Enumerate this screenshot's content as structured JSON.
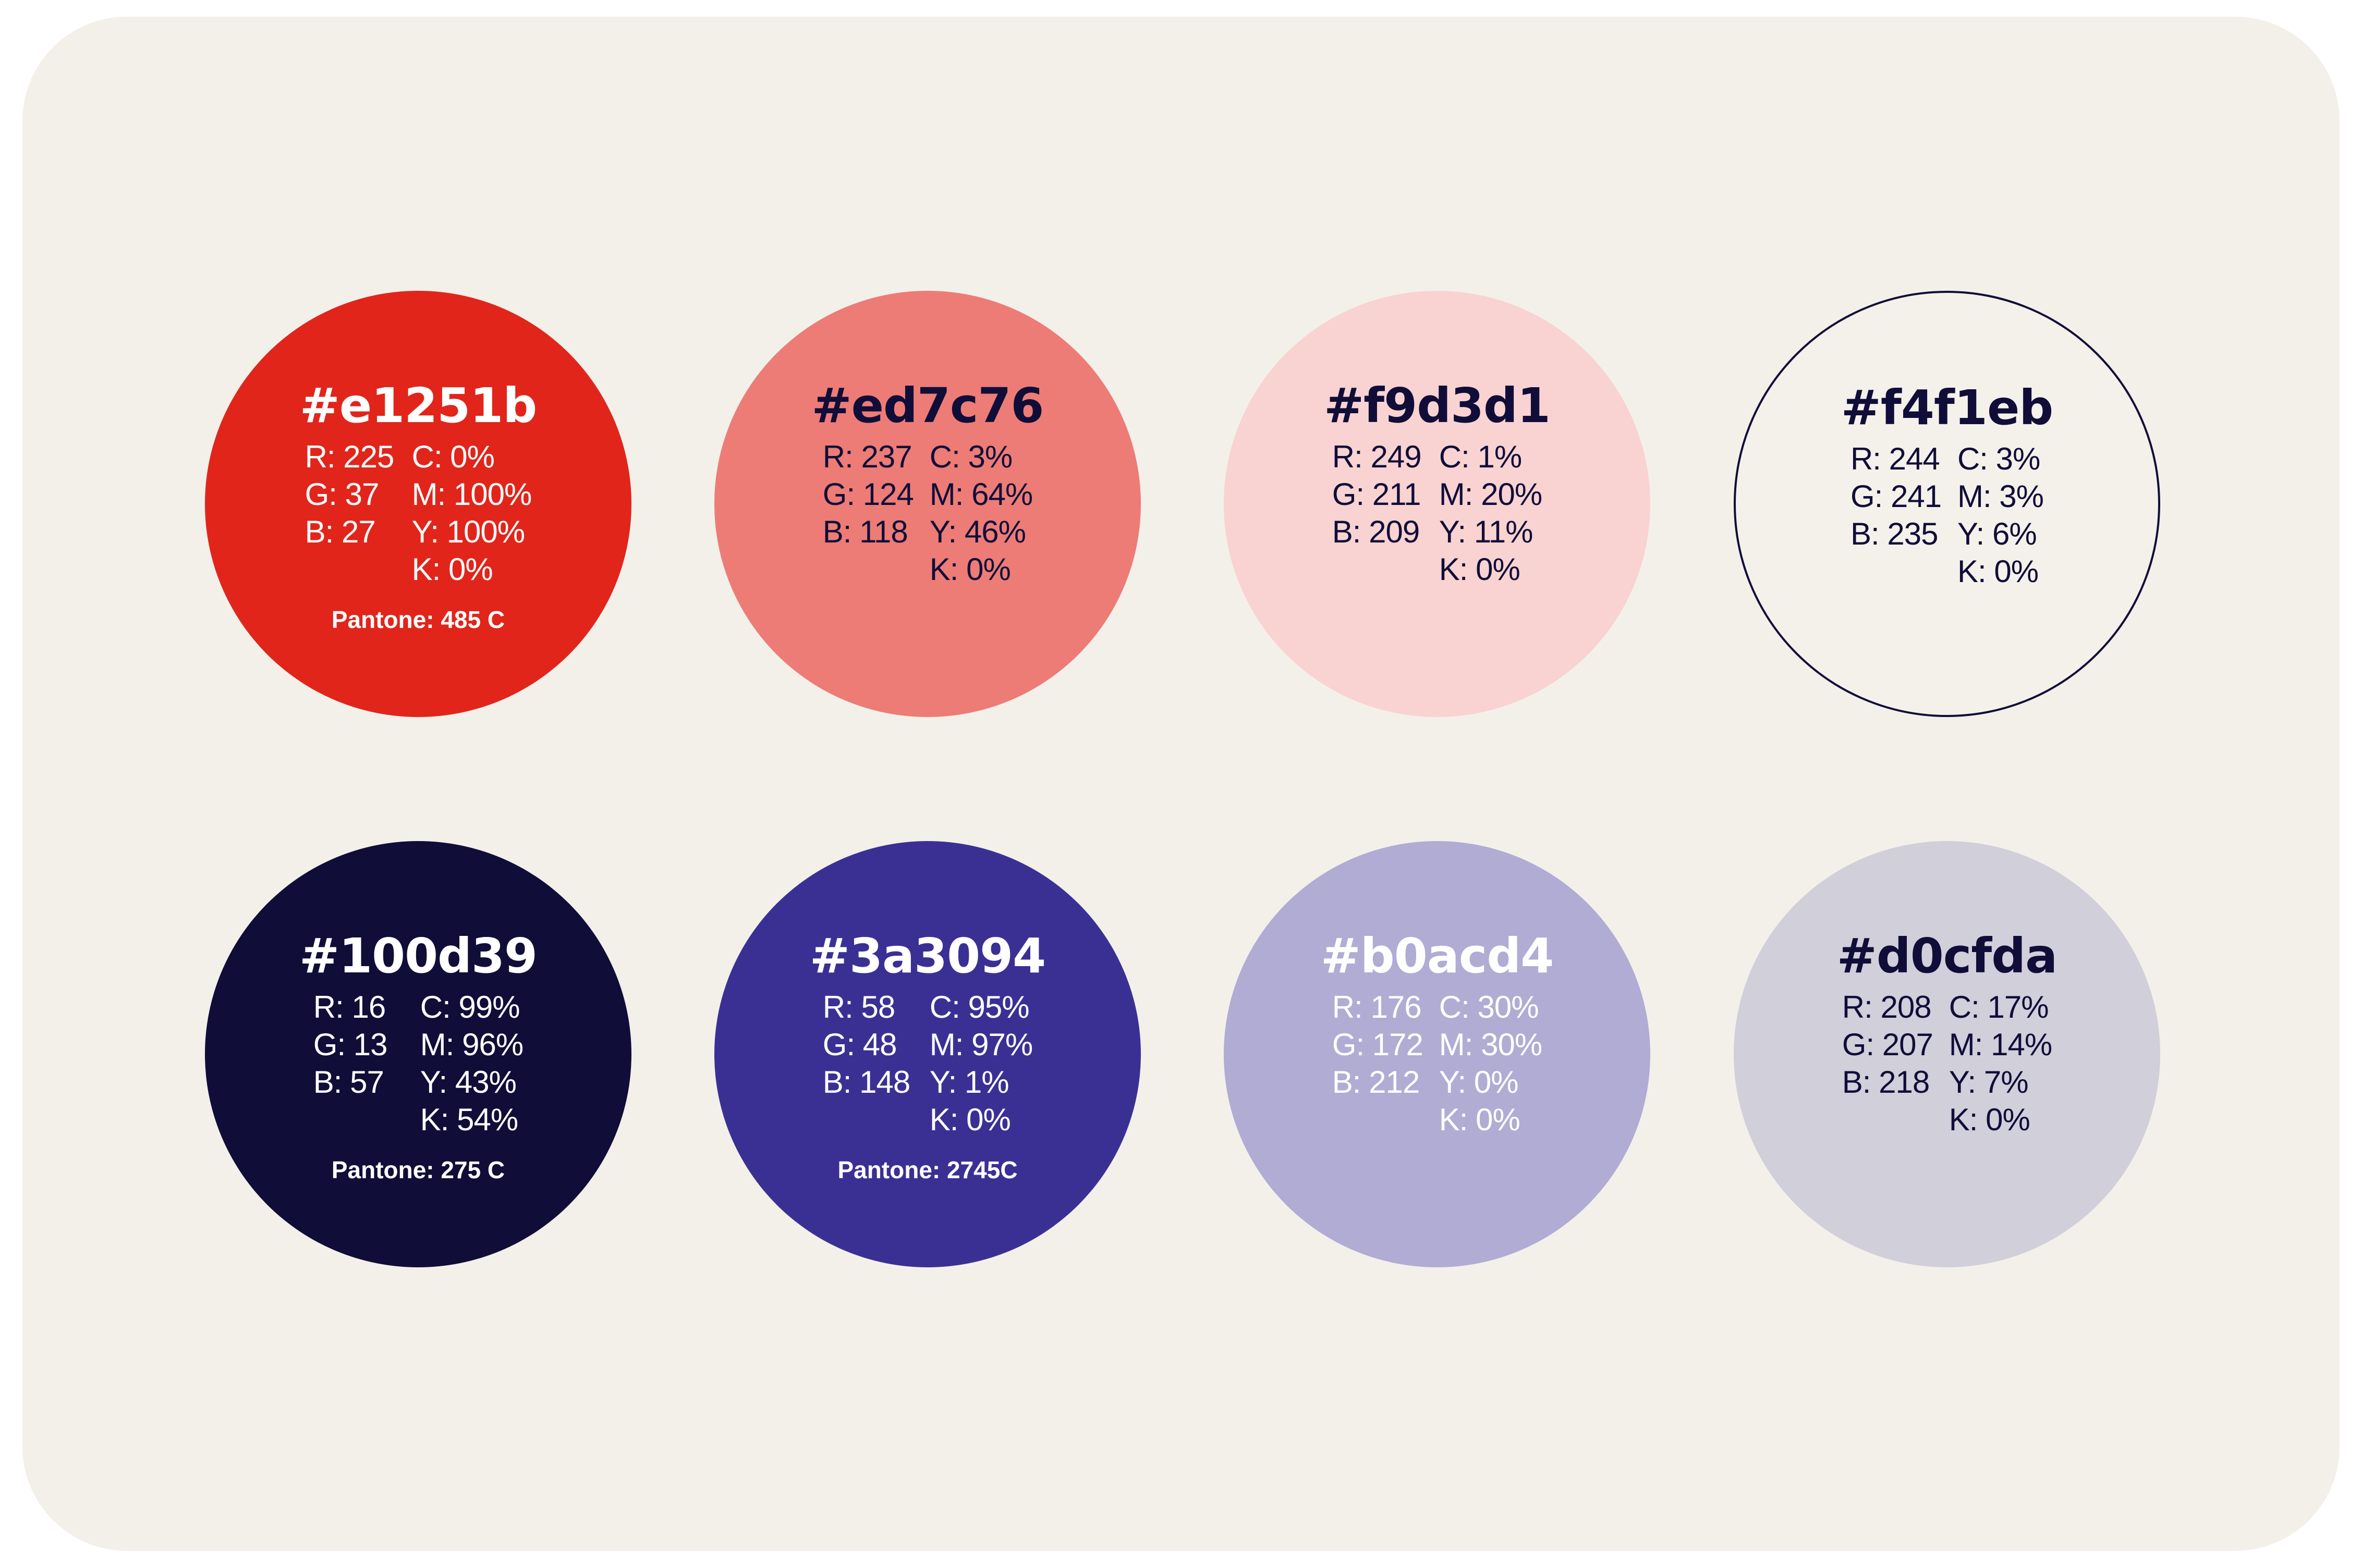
{
  "swatches": [
    {
      "hex": "#e1251b",
      "r": "R: 225",
      "g": "G: 37",
      "b": "B: 27",
      "c": "C: 0%",
      "m": "M: 100%",
      "y": "Y: 100%",
      "k": "K: 0%",
      "pantone": "Pantone: 485 C",
      "fill": "#e1251b",
      "text_color": "#ffffff"
    },
    {
      "hex": "#ed7c76",
      "r": "R: 237",
      "g": "G: 124",
      "b": "B: 118",
      "c": "C: 3%",
      "m": "M: 64%",
      "y": "Y: 46%",
      "k": "K: 0%",
      "pantone": "",
      "fill": "#ed7c76",
      "text_color": "#100d39"
    },
    {
      "hex": "#f9d3d1",
      "r": "R: 249",
      "g": "G: 211",
      "b": "B: 209",
      "c": "C: 1%",
      "m": "M: 20%",
      "y": "Y: 11%",
      "k": "K: 0%",
      "pantone": "",
      "fill": "#f9d3d1",
      "text_color": "#100d39"
    },
    {
      "hex": "#f4f1eb",
      "r": "R: 244",
      "g": "G: 241",
      "b": "B: 235",
      "c": "C: 3%",
      "m": "M: 3%",
      "y": "Y: 6%",
      "k": "K: 0%",
      "pantone": "",
      "fill": "#f4f1eb",
      "text_color": "#100d39"
    },
    {
      "hex": "#100d39",
      "r": "R: 16",
      "g": "G: 13",
      "b": "B: 57",
      "c": "C: 99%",
      "m": "M: 96%",
      "y": "Y: 43%",
      "k": "K: 54%",
      "pantone": "Pantone: 275 C",
      "fill": "#100d39",
      "text_color": "#ffffff"
    },
    {
      "hex": "#3a3094",
      "r": "R: 58",
      "g": "G: 48",
      "b": "B: 148",
      "c": "C: 95%",
      "m": "M: 97%",
      "y": "Y: 1%",
      "k": "K: 0%",
      "pantone": "Pantone: 2745C",
      "fill": "#3a3094",
      "text_color": "#ffffff"
    },
    {
      "hex": "#b0acd4",
      "r": "R: 176",
      "g": "G: 172",
      "b": "B: 212",
      "c": "C: 30%",
      "m": "M: 30%",
      "y": "Y: 0%",
      "k": "K: 0%",
      "pantone": "",
      "fill": "#b0acd4",
      "text_color": "#ffffff"
    },
    {
      "hex": "#d0cfda",
      "r": "R: 208",
      "g": "G: 207",
      "b": "B: 218",
      "c": "C: 17%",
      "m": "M: 14%",
      "y": "Y: 7%",
      "k": "K: 0%",
      "pantone": "",
      "fill": "#d0cfda",
      "text_color": "#100d39"
    }
  ]
}
